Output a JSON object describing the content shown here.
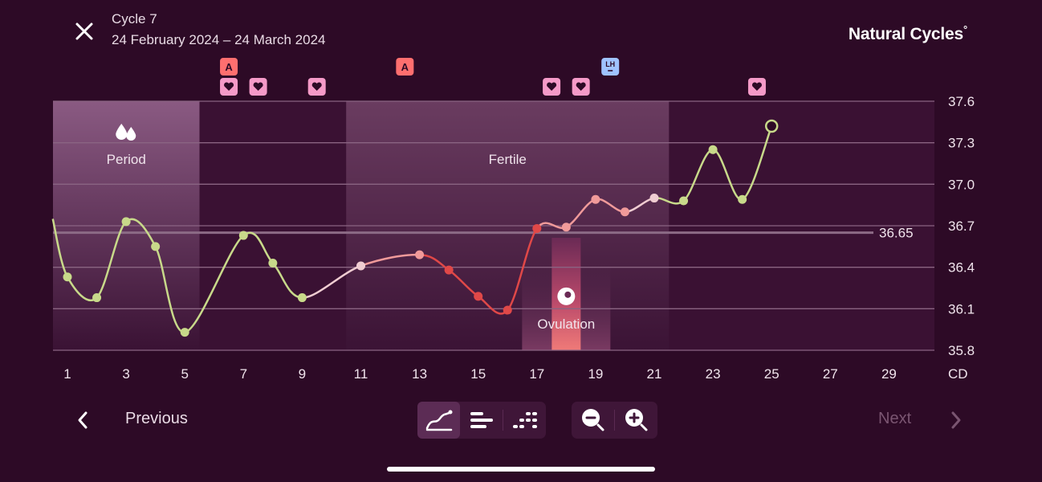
{
  "header": {
    "title": "Cycle 7",
    "dates": "24 February 2024 – 24 March 2024",
    "brand": "Natural Cycles",
    "brand_mark": "°"
  },
  "nav": {
    "previous_label": "Previous",
    "next_label": "Next"
  },
  "toolbar": {
    "view_options": [
      "graph-view-icon",
      "bars-view-icon",
      "dots-view-icon"
    ],
    "zoom_options": [
      "zoom-out-icon",
      "zoom-in-icon"
    ]
  },
  "chart_data": {
    "type": "line",
    "x_label": "CD",
    "x_ticks": [
      1,
      3,
      5,
      7,
      9,
      11,
      13,
      15,
      17,
      19,
      21,
      23,
      25,
      27,
      29
    ],
    "y_ticks": [
      "35.8",
      "36.1",
      "36.4",
      "36.7",
      "37.0",
      "37.3",
      "37.6"
    ],
    "ylim": [
      35.8,
      37.6
    ],
    "xlim": [
      0.5,
      30.5
    ],
    "coverline": {
      "value": 36.65,
      "label": "36.65"
    },
    "zones": [
      {
        "label": "Period",
        "start_cd": 1,
        "end_cd": 5,
        "icon": "drops-icon"
      },
      {
        "label": "Fertile",
        "start_cd": 11,
        "end_cd": 21
      }
    ],
    "ovulation": {
      "label": "Ovulation",
      "cd": 18
    },
    "series": [
      {
        "points": [
          {
            "cd": 0.5,
            "temp": 36.75,
            "status": "green",
            "hidden": true
          },
          {
            "cd": 1,
            "temp": 36.33,
            "status": "green"
          },
          {
            "cd": 2,
            "temp": 36.18,
            "status": "green"
          },
          {
            "cd": 3,
            "temp": 36.73,
            "status": "green"
          },
          {
            "cd": 4,
            "temp": 36.55,
            "status": "green"
          },
          {
            "cd": 5,
            "temp": 35.93,
            "status": "green"
          },
          {
            "cd": 7,
            "temp": 36.63,
            "status": "green"
          },
          {
            "cd": 8,
            "temp": 36.43,
            "status": "green"
          },
          {
            "cd": 9,
            "temp": 36.18,
            "status": "green"
          },
          {
            "cd": 11,
            "temp": 36.41,
            "status": "pink"
          },
          {
            "cd": 13,
            "temp": 36.49,
            "status": "salmon"
          },
          {
            "cd": 14,
            "temp": 36.38,
            "status": "red"
          },
          {
            "cd": 15,
            "temp": 36.19,
            "status": "red"
          },
          {
            "cd": 16,
            "temp": 36.09,
            "status": "red"
          },
          {
            "cd": 17,
            "temp": 36.68,
            "status": "red"
          },
          {
            "cd": 18,
            "temp": 36.69,
            "status": "salmon"
          },
          {
            "cd": 19,
            "temp": 36.89,
            "status": "salmon"
          },
          {
            "cd": 20,
            "temp": 36.8,
            "status": "salmon"
          },
          {
            "cd": 21,
            "temp": 36.9,
            "status": "pink"
          },
          {
            "cd": 22,
            "temp": 36.88,
            "status": "green"
          },
          {
            "cd": 23,
            "temp": 37.25,
            "status": "green"
          },
          {
            "cd": 24,
            "temp": 36.89,
            "status": "green"
          },
          {
            "cd": 25,
            "temp": 37.42,
            "status": "green",
            "today": true
          }
        ]
      }
    ],
    "markers": [
      {
        "cd": 6,
        "type": "A",
        "row": 1
      },
      {
        "cd": 12,
        "type": "A",
        "row": 1
      },
      {
        "cd": 19,
        "type": "LH",
        "row": 1
      },
      {
        "cd": 6,
        "type": "heart",
        "row": 2
      },
      {
        "cd": 7,
        "type": "heart",
        "row": 2
      },
      {
        "cd": 9,
        "type": "heart",
        "row": 2
      },
      {
        "cd": 17,
        "type": "heart",
        "row": 2
      },
      {
        "cd": 18,
        "type": "heart",
        "row": 2
      },
      {
        "cd": 24,
        "type": "heart",
        "row": 2
      }
    ],
    "colors": {
      "background": "#2d0a26",
      "green": "#c8d98a",
      "pink": "#f0cdd2",
      "salmon": "#f09a9a",
      "red": "#e04848",
      "marker_A": "#ff6f6f",
      "marker_heart": "#f59ac8",
      "marker_LH": "#9fc3ff"
    }
  }
}
